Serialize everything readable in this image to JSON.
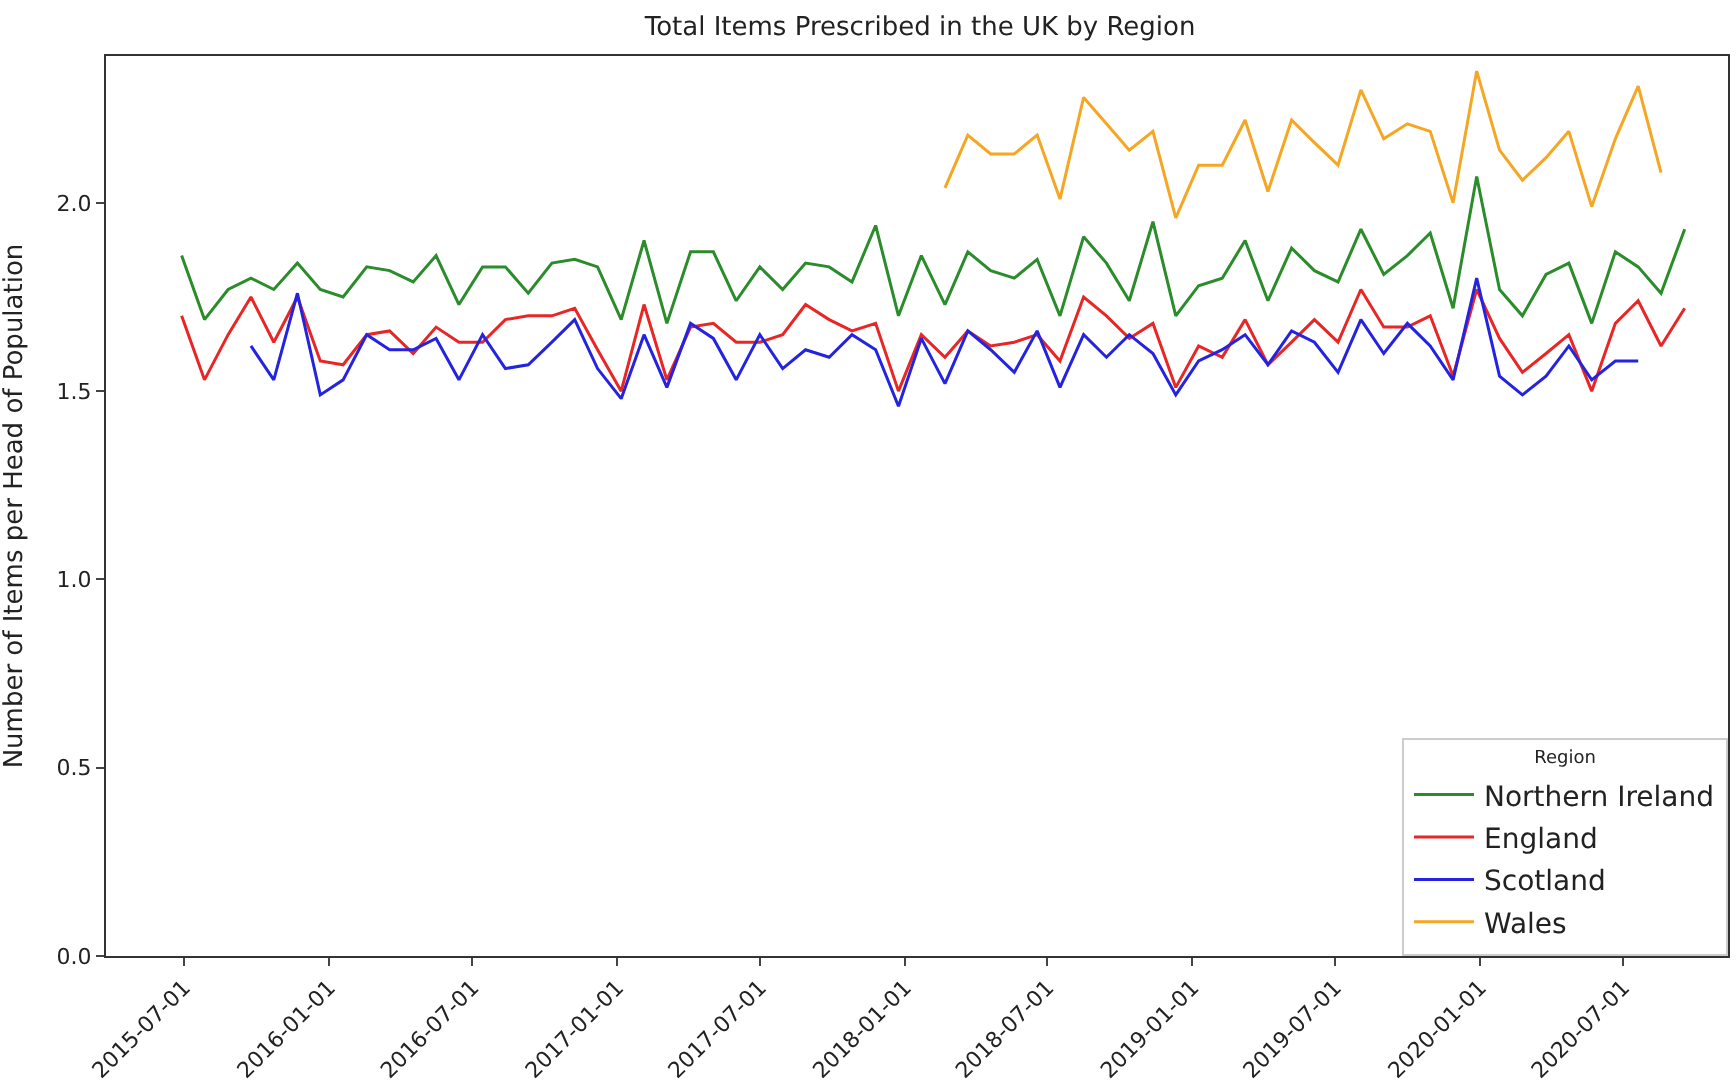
{
  "chart_data": {
    "type": "line",
    "title": "Total Items Prescribed in the UK by Region",
    "ylabel": "Number of Items per Head of Population",
    "legend_title": "Region",
    "x": [
      "2015-06-28",
      "2015-07-27",
      "2015-08-26",
      "2015-09-24",
      "2015-10-23",
      "2015-11-22",
      "2015-12-21",
      "2016-01-19",
      "2016-02-18",
      "2016-03-18",
      "2016-04-17",
      "2016-05-16",
      "2016-06-14",
      "2016-07-14",
      "2016-08-12",
      "2016-09-10",
      "2016-10-10",
      "2016-11-08",
      "2016-12-07",
      "2017-01-06",
      "2017-02-04",
      "2017-03-05",
      "2017-04-04",
      "2017-05-03",
      "2017-06-01",
      "2017-07-01",
      "2017-07-30",
      "2017-08-28",
      "2017-09-27",
      "2017-10-26",
      "2017-11-25",
      "2017-12-24",
      "2018-01-22",
      "2018-02-21",
      "2018-03-22",
      "2018-04-20",
      "2018-05-20",
      "2018-06-18",
      "2018-07-17",
      "2018-08-16",
      "2018-09-14",
      "2018-10-13",
      "2018-11-12",
      "2018-12-11",
      "2019-01-09",
      "2019-02-08",
      "2019-03-09",
      "2019-04-07",
      "2019-05-07",
      "2019-06-05",
      "2019-07-05",
      "2019-08-03",
      "2019-09-01",
      "2019-10-01",
      "2019-10-30",
      "2019-11-28",
      "2019-12-28",
      "2020-01-26",
      "2020-02-24",
      "2020-03-25",
      "2020-04-23",
      "2020-05-22",
      "2020-06-21",
      "2020-07-20",
      "2020-08-18",
      "2020-09-17"
    ],
    "series": [
      {
        "name": "Northern Ireland",
        "color": "#2a8c2a",
        "values": [
          1.86,
          1.69,
          1.77,
          1.8,
          1.77,
          1.84,
          1.77,
          1.75,
          1.83,
          1.82,
          1.79,
          1.86,
          1.73,
          1.83,
          1.83,
          1.76,
          1.84,
          1.85,
          1.83,
          1.69,
          1.9,
          1.68,
          1.87,
          1.87,
          1.74,
          1.83,
          1.77,
          1.84,
          1.83,
          1.79,
          1.94,
          1.7,
          1.86,
          1.73,
          1.87,
          1.82,
          1.8,
          1.85,
          1.7,
          1.91,
          1.84,
          1.74,
          1.95,
          1.7,
          1.78,
          1.8,
          1.9,
          1.74,
          1.88,
          1.82,
          1.79,
          1.93,
          1.81,
          1.86,
          1.92,
          1.72,
          2.07,
          1.77,
          1.7,
          1.81,
          1.84,
          1.68,
          1.87,
          1.83,
          1.76,
          1.93
        ]
      },
      {
        "name": "England",
        "color": "#e82626",
        "values": [
          1.7,
          1.53,
          1.65,
          1.75,
          1.63,
          1.75,
          1.58,
          1.57,
          1.65,
          1.66,
          1.6,
          1.67,
          1.63,
          1.63,
          1.69,
          1.7,
          1.7,
          1.72,
          1.61,
          1.5,
          1.73,
          1.53,
          1.67,
          1.68,
          1.63,
          1.63,
          1.65,
          1.73,
          1.69,
          1.66,
          1.68,
          1.5,
          1.65,
          1.59,
          1.66,
          1.62,
          1.63,
          1.65,
          1.58,
          1.75,
          1.7,
          1.64,
          1.68,
          1.51,
          1.62,
          1.59,
          1.69,
          1.57,
          1.63,
          1.69,
          1.63,
          1.77,
          1.67,
          1.67,
          1.7,
          1.54,
          1.77,
          1.64,
          1.55,
          1.6,
          1.65,
          1.5,
          1.68,
          1.74,
          1.62,
          1.72
        ]
      },
      {
        "name": "Scotland",
        "color": "#2424e0",
        "values": [
          null,
          null,
          null,
          1.62,
          1.53,
          1.76,
          1.49,
          1.53,
          1.65,
          1.61,
          1.61,
          1.64,
          1.53,
          1.65,
          1.56,
          1.57,
          1.63,
          1.69,
          1.56,
          1.48,
          1.65,
          1.51,
          1.68,
          1.64,
          1.53,
          1.65,
          1.56,
          1.61,
          1.59,
          1.65,
          1.61,
          1.46,
          1.64,
          1.52,
          1.66,
          1.61,
          1.55,
          1.66,
          1.51,
          1.65,
          1.59,
          1.65,
          1.6,
          1.49,
          1.58,
          1.61,
          1.65,
          1.57,
          1.66,
          1.63,
          1.55,
          1.69,
          1.6,
          1.68,
          1.62,
          1.53,
          1.8,
          1.54,
          1.49,
          1.54,
          1.62,
          1.53,
          1.58,
          1.58,
          null,
          null
        ]
      },
      {
        "name": "Wales",
        "color": "#f5a623",
        "values": [
          null,
          null,
          null,
          null,
          null,
          null,
          null,
          null,
          null,
          null,
          null,
          null,
          null,
          null,
          null,
          null,
          null,
          null,
          null,
          null,
          null,
          null,
          null,
          null,
          null,
          null,
          null,
          null,
          null,
          null,
          null,
          null,
          null,
          2.04,
          2.18,
          2.13,
          2.13,
          2.18,
          2.01,
          2.28,
          2.21,
          2.14,
          2.19,
          1.96,
          2.1,
          2.1,
          2.22,
          2.03,
          2.22,
          2.16,
          2.1,
          2.3,
          2.17,
          2.21,
          2.19,
          2.0,
          2.35,
          2.14,
          2.06,
          2.12,
          2.19,
          1.99,
          2.17,
          2.31,
          2.08,
          null
        ]
      }
    ],
    "xlim": [
      "2015-03-24",
      "2020-11-11"
    ],
    "xticks": [
      "2015-07-01",
      "2016-01-01",
      "2016-07-01",
      "2017-01-01",
      "2017-07-01",
      "2018-01-01",
      "2018-07-01",
      "2019-01-01",
      "2019-07-01",
      "2020-01-01",
      "2020-07-01"
    ],
    "ylim": [
      0,
      2.39
    ],
    "yticks": [
      {
        "value": 0,
        "label": "0.0"
      },
      {
        "value": 0.5,
        "label": "0.5"
      },
      {
        "value": 1.0,
        "label": "1.0"
      },
      {
        "value": 1.5,
        "label": "1.5"
      },
      {
        "value": 2.0,
        "label": "2.0"
      }
    ],
    "legend": "bottom right",
    "marker": "none",
    "line_style": "solid"
  }
}
